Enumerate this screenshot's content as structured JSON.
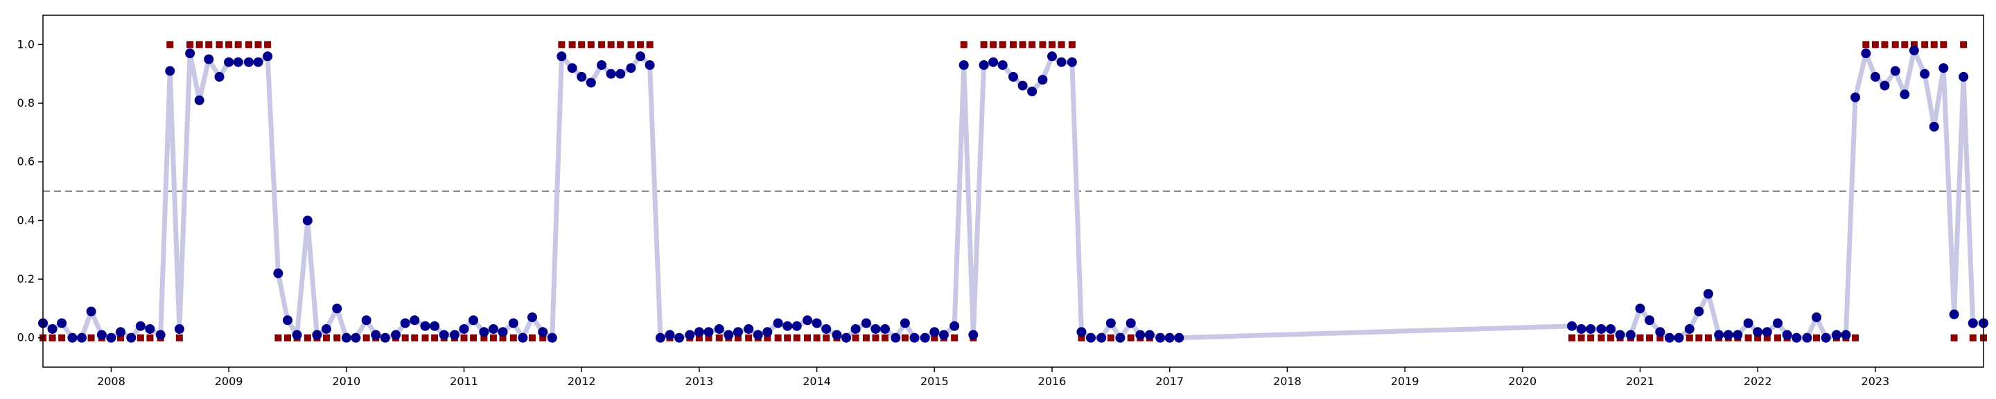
{
  "chart_data": {
    "type": "scatter",
    "title": "",
    "xlabel": "",
    "ylabel": "",
    "xlim": [
      2007.42,
      2023.92
    ],
    "ylim": [
      -0.1,
      1.1
    ],
    "x_ticks": [
      2008,
      2009,
      2010,
      2011,
      2012,
      2013,
      2014,
      2015,
      2016,
      2017,
      2018,
      2019,
      2020,
      2021,
      2022,
      2023
    ],
    "y_ticks": [
      0.0,
      0.2,
      0.4,
      0.6,
      0.8,
      1.0
    ],
    "y_tick_labels": [
      "0.0",
      "0.2",
      "0.4",
      "0.6",
      "0.8",
      "1.0"
    ],
    "threshold": 0.5,
    "grid": false,
    "legend": "none",
    "colors": {
      "probability_line": "#c8c8e4",
      "probability_point": "#00008b",
      "label_marker": "#8b0000",
      "threshold_line": "#888888"
    },
    "series": [
      {
        "kind": "probability",
        "points": [
          [
            2007.42,
            0.05
          ],
          [
            2007.5,
            0.03
          ],
          [
            2007.58,
            0.05
          ],
          [
            2007.67,
            0.0
          ],
          [
            2007.75,
            0.0
          ],
          [
            2007.83,
            0.09
          ],
          [
            2007.92,
            0.01
          ],
          [
            2008.0,
            0.0
          ],
          [
            2008.08,
            0.02
          ],
          [
            2008.17,
            0.0
          ],
          [
            2008.25,
            0.04
          ],
          [
            2008.33,
            0.03
          ],
          [
            2008.42,
            0.01
          ],
          [
            2008.5,
            0.91
          ],
          [
            2008.58,
            0.03
          ],
          [
            2008.67,
            0.97
          ],
          [
            2008.75,
            0.81
          ],
          [
            2008.83,
            0.95
          ],
          [
            2008.92,
            0.89
          ],
          [
            2009.0,
            0.94
          ],
          [
            2009.08,
            0.94
          ],
          [
            2009.17,
            0.94
          ],
          [
            2009.25,
            0.94
          ],
          [
            2009.33,
            0.96
          ],
          [
            2009.42,
            0.22
          ],
          [
            2009.5,
            0.06
          ],
          [
            2009.58,
            0.01
          ],
          [
            2009.67,
            0.4
          ],
          [
            2009.75,
            0.01
          ],
          [
            2009.83,
            0.03
          ],
          [
            2009.92,
            0.1
          ],
          [
            2010.0,
            0.0
          ],
          [
            2010.08,
            0.0
          ],
          [
            2010.17,
            0.06
          ],
          [
            2010.25,
            0.01
          ],
          [
            2010.33,
            0.0
          ],
          [
            2010.42,
            0.01
          ],
          [
            2010.5,
            0.05
          ],
          [
            2010.58,
            0.06
          ],
          [
            2010.67,
            0.04
          ],
          [
            2010.75,
            0.04
          ],
          [
            2010.83,
            0.01
          ],
          [
            2010.92,
            0.01
          ],
          [
            2011.0,
            0.03
          ],
          [
            2011.08,
            0.06
          ],
          [
            2011.17,
            0.02
          ],
          [
            2011.25,
            0.03
          ],
          [
            2011.33,
            0.02
          ],
          [
            2011.42,
            0.05
          ],
          [
            2011.5,
            0.0
          ],
          [
            2011.58,
            0.07
          ],
          [
            2011.67,
            0.02
          ],
          [
            2011.75,
            0.0
          ],
          [
            2011.83,
            0.96
          ],
          [
            2011.92,
            0.92
          ],
          [
            2012.0,
            0.89
          ],
          [
            2012.08,
            0.87
          ],
          [
            2012.17,
            0.93
          ],
          [
            2012.25,
            0.9
          ],
          [
            2012.33,
            0.9
          ],
          [
            2012.42,
            0.92
          ],
          [
            2012.5,
            0.96
          ],
          [
            2012.58,
            0.93
          ],
          [
            2012.67,
            0.0
          ],
          [
            2012.75,
            0.01
          ],
          [
            2012.83,
            0.0
          ],
          [
            2012.92,
            0.01
          ],
          [
            2013.0,
            0.02
          ],
          [
            2013.08,
            0.02
          ],
          [
            2013.17,
            0.03
          ],
          [
            2013.25,
            0.01
          ],
          [
            2013.33,
            0.02
          ],
          [
            2013.42,
            0.03
          ],
          [
            2013.5,
            0.01
          ],
          [
            2013.58,
            0.02
          ],
          [
            2013.67,
            0.05
          ],
          [
            2013.75,
            0.04
          ],
          [
            2013.83,
            0.04
          ],
          [
            2013.92,
            0.06
          ],
          [
            2014.0,
            0.05
          ],
          [
            2014.08,
            0.03
          ],
          [
            2014.17,
            0.01
          ],
          [
            2014.25,
            0.0
          ],
          [
            2014.33,
            0.03
          ],
          [
            2014.42,
            0.05
          ],
          [
            2014.5,
            0.03
          ],
          [
            2014.58,
            0.03
          ],
          [
            2014.67,
            0.0
          ],
          [
            2014.75,
            0.05
          ],
          [
            2014.83,
            0.0
          ],
          [
            2014.92,
            0.0
          ],
          [
            2015.0,
            0.02
          ],
          [
            2015.08,
            0.01
          ],
          [
            2015.17,
            0.04
          ],
          [
            2015.25,
            0.93
          ],
          [
            2015.33,
            0.01
          ],
          [
            2015.42,
            0.93
          ],
          [
            2015.5,
            0.94
          ],
          [
            2015.58,
            0.93
          ],
          [
            2015.67,
            0.89
          ],
          [
            2015.75,
            0.86
          ],
          [
            2015.83,
            0.84
          ],
          [
            2015.92,
            0.88
          ],
          [
            2016.0,
            0.96
          ],
          [
            2016.08,
            0.94
          ],
          [
            2016.17,
            0.94
          ],
          [
            2016.25,
            0.02
          ],
          [
            2016.33,
            0.0
          ],
          [
            2016.42,
            0.0
          ],
          [
            2016.5,
            0.05
          ],
          [
            2016.58,
            0.0
          ],
          [
            2016.67,
            0.05
          ],
          [
            2016.75,
            0.01
          ],
          [
            2016.83,
            0.01
          ],
          [
            2016.92,
            0.0
          ],
          [
            2017.0,
            0.0
          ],
          [
            2017.08,
            0.0
          ],
          [
            2020.42,
            0.04
          ],
          [
            2020.5,
            0.03
          ],
          [
            2020.58,
            0.03
          ],
          [
            2020.67,
            0.03
          ],
          [
            2020.75,
            0.03
          ],
          [
            2020.83,
            0.01
          ],
          [
            2020.92,
            0.01
          ],
          [
            2021.0,
            0.1
          ],
          [
            2021.08,
            0.06
          ],
          [
            2021.17,
            0.02
          ],
          [
            2021.25,
            0.0
          ],
          [
            2021.33,
            0.0
          ],
          [
            2021.42,
            0.03
          ],
          [
            2021.5,
            0.09
          ],
          [
            2021.58,
            0.15
          ],
          [
            2021.67,
            0.01
          ],
          [
            2021.75,
            0.01
          ],
          [
            2021.83,
            0.01
          ],
          [
            2021.92,
            0.05
          ],
          [
            2022.0,
            0.02
          ],
          [
            2022.08,
            0.02
          ],
          [
            2022.17,
            0.05
          ],
          [
            2022.25,
            0.01
          ],
          [
            2022.33,
            0.0
          ],
          [
            2022.42,
            0.0
          ],
          [
            2022.5,
            0.07
          ],
          [
            2022.58,
            0.0
          ],
          [
            2022.67,
            0.01
          ],
          [
            2022.75,
            0.01
          ],
          [
            2022.83,
            0.82
          ],
          [
            2022.92,
            0.97
          ],
          [
            2023.0,
            0.89
          ],
          [
            2023.08,
            0.86
          ],
          [
            2023.17,
            0.91
          ],
          [
            2023.25,
            0.83
          ],
          [
            2023.33,
            0.98
          ],
          [
            2023.42,
            0.9
          ],
          [
            2023.5,
            0.72
          ],
          [
            2023.58,
            0.92
          ],
          [
            2023.67,
            0.08
          ],
          [
            2023.75,
            0.89
          ],
          [
            2023.83,
            0.05
          ],
          [
            2023.92,
            0.05
          ]
        ]
      },
      {
        "kind": "label",
        "one_intervals": [
          [
            2008.5,
            2008.5
          ],
          [
            2008.67,
            2009.33
          ],
          [
            2011.83,
            2012.58
          ],
          [
            2015.25,
            2015.25
          ],
          [
            2015.42,
            2016.17
          ],
          [
            2022.92,
            2023.58
          ],
          [
            2023.75,
            2023.75
          ]
        ],
        "covered_ranges": [
          [
            2007.42,
            2017.08
          ],
          [
            2020.42,
            2023.92
          ]
        ]
      }
    ]
  }
}
